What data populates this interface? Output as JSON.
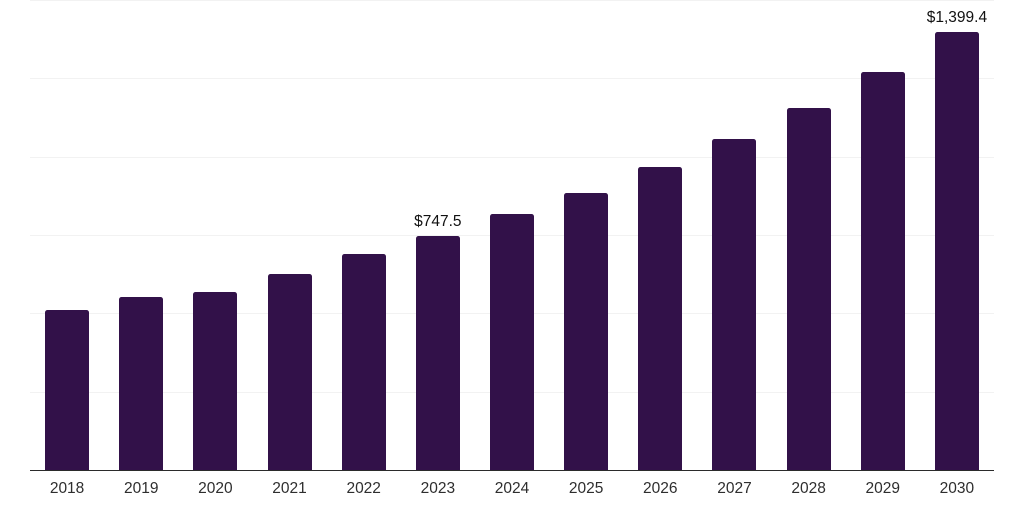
{
  "chart_data": {
    "type": "bar",
    "title": "",
    "xlabel": "",
    "ylabel": "",
    "categories": [
      "2018",
      "2019",
      "2020",
      "2021",
      "2022",
      "2023",
      "2024",
      "2025",
      "2026",
      "2027",
      "2028",
      "2029",
      "2030"
    ],
    "values": [
      510,
      551,
      567,
      625,
      688,
      747.5,
      816,
      885,
      968,
      1055,
      1156,
      1271,
      1399.4
    ],
    "data_labels": [
      {
        "category": "2023",
        "text": "$747.5"
      },
      {
        "category": "2030",
        "text": "$1,399.4"
      }
    ],
    "value_prefix": "$",
    "ylim": [
      0,
      1500
    ],
    "grid_step": 250,
    "grid": "horizontal-only",
    "legend": "none",
    "colors": {
      "bar": "#321149",
      "gridline": "#f2f2f2",
      "axis_line": "#2b2b2b",
      "tick_label": "#2e2e2e",
      "data_label": "#111111",
      "background": "#ffffff"
    }
  }
}
